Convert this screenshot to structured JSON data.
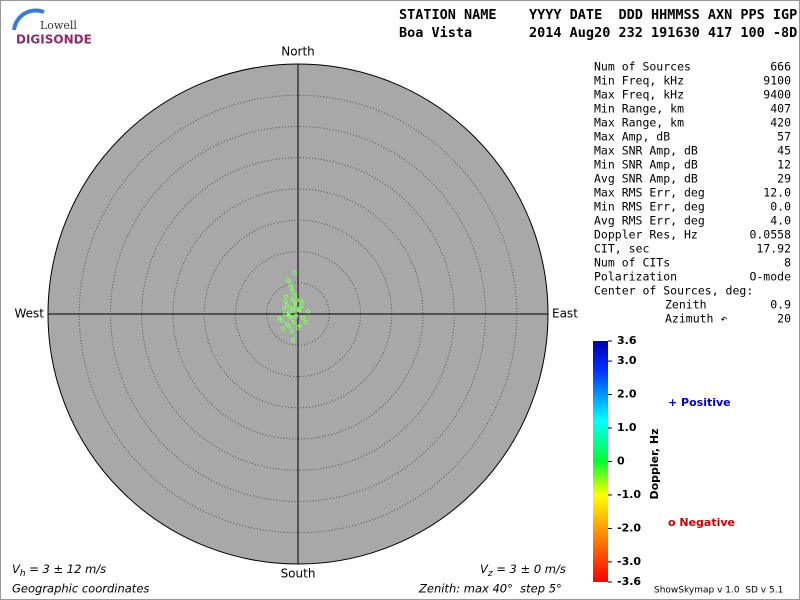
{
  "header": {
    "logo_top": "Lowell",
    "logo_bottom": "DIGISONDE",
    "line1": "STATION NAME    YYYY DATE  DDD HHMMSS AXN PPS IGP",
    "line2": "Boa Vista       2014 Aug20 232 191630 417 100 -8D"
  },
  "stats": [
    [
      "Num of Sources",
      "666"
    ],
    [
      "Min Freq, kHz",
      "9100"
    ],
    [
      "Max Freq, kHz",
      "9400"
    ],
    [
      "Min Range, km",
      "407"
    ],
    [
      "Max Range, km",
      "420"
    ],
    [
      "Max Amp, dB",
      "57"
    ],
    [
      "Max SNR Amp, dB",
      "45"
    ],
    [
      "Min SNR Amp, dB",
      "12"
    ],
    [
      "Avg SNR Amp, dB",
      "29"
    ],
    [
      "Max RMS Err, deg",
      "12.0"
    ],
    [
      "Min RMS Err, deg",
      "0.0"
    ],
    [
      "Avg RMS Err, deg",
      "4.0"
    ],
    [
      "Doppler Res, Hz",
      "0.0558"
    ],
    [
      "CIT, sec",
      "17.92"
    ],
    [
      "Num of CITs",
      "8"
    ],
    [
      "Polarization",
      "O-mode"
    ]
  ],
  "center": {
    "title": "Center of Sources, deg:",
    "rows": [
      [
        "Zenith",
        "0.9"
      ],
      [
        "Azimuth ↶",
        "20"
      ]
    ]
  },
  "compass": {
    "north": "North",
    "south": "South",
    "east": "East",
    "west": "West"
  },
  "footer": {
    "vh": [
      "V",
      "h",
      " = 3 ± 12 m/s"
    ],
    "vz": [
      "V",
      "z",
      " = 3 ± 0 m/s"
    ],
    "coords": "Geographic coordinates",
    "zenith": "Zenith: max 40°  step 5°",
    "version": "ShowSkymap v 1.0  SD v 5.1"
  },
  "chart_data": {
    "type": "skymap",
    "zlim": [
      0,
      40
    ],
    "zstep": 5,
    "color": "#80ff60",
    "points": {
      "x": [
        -1.2,
        -0.8,
        -0.5,
        -1.5,
        -0.3,
        -1.0,
        -0.6,
        -1.8,
        0.2,
        -0.9,
        -1.3,
        -0.4,
        0.5,
        -2.0,
        -0.7,
        -1.1,
        0.8,
        -2.6,
        -0.2,
        1.2,
        -1.6,
        0.0,
        -0.9,
        -1.4,
        0.3,
        -2.2,
        -0.5,
        1.6,
        -1.0,
        -3.0,
        -1.9,
        -0.4,
        -1.5,
        0.6,
        -0.8,
        -2.4,
        0.1,
        -1.2,
        -1.8,
        -2.0
      ],
      "y": [
        1.0,
        0.5,
        1.8,
        0.2,
        -0.3,
        2.4,
        0.9,
        1.4,
        0.6,
        -0.8,
        -0.4,
        3.0,
        1.2,
        0.0,
        -1.4,
        4.2,
        -0.6,
        -1.0,
        2.2,
        -1.3,
        5.4,
        -2.2,
        3.6,
        -2.0,
        -1.9,
        0.9,
        6.6,
        0.4,
        -2.8,
        -0.7,
        2.8,
        1.5,
        -0.2,
        2.0,
        -4.2,
        -2.4,
        0.8,
        4.8,
        -1.6,
        2.0
      ]
    },
    "colorbar": {
      "title": "Doppler, Hz",
      "lim": [
        -3.6,
        3.6
      ],
      "ticks": [
        {
          "value": 3.6,
          "label": "3.6"
        },
        {
          "value": 3.0,
          "label": "3.0"
        },
        {
          "value": 2.0,
          "label": "2.0"
        },
        {
          "value": 1.0,
          "label": "1.0"
        },
        0,
        {
          "value": -1.0,
          "label": "-1.0"
        },
        {
          "value": -2.0,
          "label": "-2.0"
        },
        {
          "value": -3.0,
          "label": "-3.0"
        },
        {
          "value": -3.6,
          "label": "-3.6"
        }
      ],
      "positive": "+ Positive",
      "negative": "o Negative"
    }
  }
}
